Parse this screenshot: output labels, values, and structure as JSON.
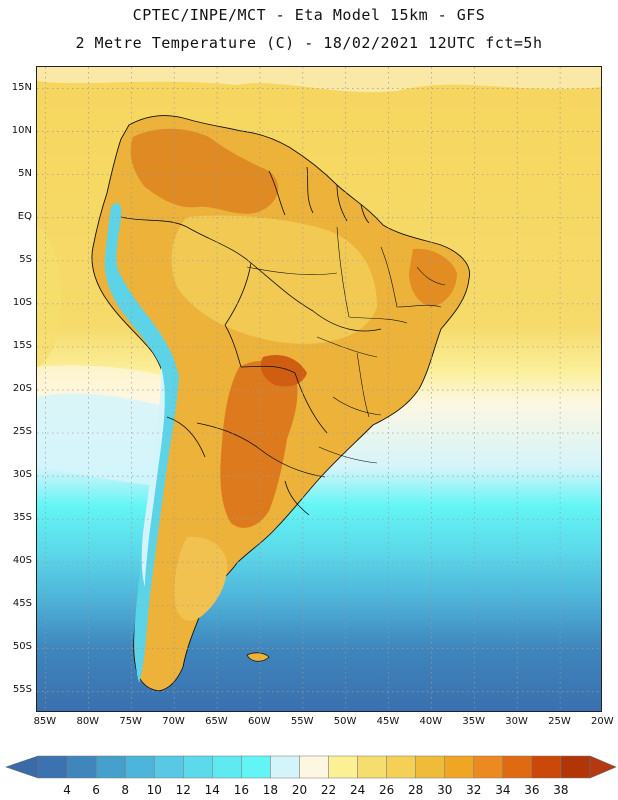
{
  "header": {
    "line1": "CPTEC/INPE/MCT -  Eta Model 15km - GFS",
    "line2": "2 Metre Temperature (C) - 18/02/2021 12UTC fct=5h"
  },
  "map": {
    "lat_labels": [
      "15N",
      "10N",
      "5N",
      "EQ",
      "5S",
      "10S",
      "15S",
      "20S",
      "25S",
      "30S",
      "35S",
      "40S",
      "45S",
      "50S",
      "55S"
    ],
    "lon_labels": [
      "85W",
      "80W",
      "75W",
      "70W",
      "65W",
      "60W",
      "55W",
      "50W",
      "45W",
      "40W",
      "35W",
      "30W",
      "25W",
      "20W"
    ],
    "lat_values": [
      15,
      10,
      5,
      0,
      -5,
      -10,
      -15,
      -20,
      -25,
      -30,
      -35,
      -40,
      -45,
      -50,
      -55
    ],
    "lon_values": [
      -85,
      -80,
      -75,
      -70,
      -65,
      -60,
      -55,
      -50,
      -45,
      -40,
      -35,
      -30,
      -25,
      -20
    ],
    "lat_range": [
      -57.5,
      17.5
    ],
    "lon_range": [
      -86,
      -20
    ],
    "variable": "2 Metre Temperature",
    "units": "C"
  },
  "colorbar": {
    "ticks": [
      "4",
      "6",
      "8",
      "10",
      "12",
      "14",
      "16",
      "18",
      "20",
      "22",
      "24",
      "26",
      "28",
      "30",
      "32",
      "34",
      "36",
      "38"
    ],
    "colors": [
      "#3a73b0",
      "#3f86bd",
      "#46a0cc",
      "#4eb5da",
      "#58c8e4",
      "#5cd9ea",
      "#5fe9f0",
      "#63f5f5",
      "#d4f4fb",
      "#fdf7e2",
      "#fbf093",
      "#f6de6e",
      "#f4d156",
      "#efbc3a",
      "#f0a623",
      "#ea8a20",
      "#e06a12",
      "#c9480a",
      "#b03608"
    ],
    "min_arrow_color": "#3a6aa8",
    "max_arrow_color": "#b33a10"
  },
  "colors": {
    "land_outline": "#111111",
    "grid": "#9a9a9a"
  }
}
